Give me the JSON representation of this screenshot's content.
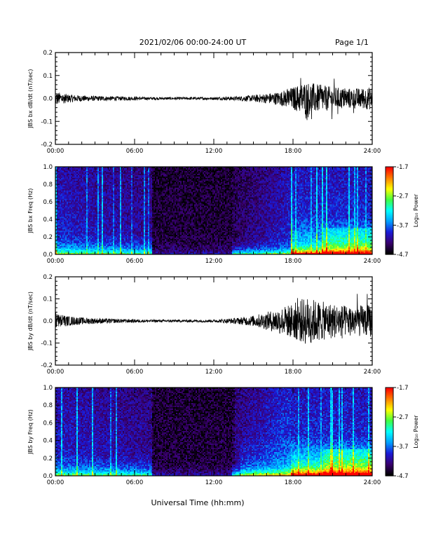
{
  "header": {
    "date_range": "2021/02/06  00:00-24:00 UT",
    "page": "Page 1/1"
  },
  "xaxis": {
    "title": "Universal Time (hh:mm)",
    "ticks": [
      "00:00",
      "06:00",
      "12:00",
      "18:00",
      "24:00"
    ],
    "range_hours": [
      0,
      24
    ]
  },
  "colorbar": {
    "label": "Log₁₀ Power",
    "ticks": [
      "-1.7",
      "-2.7",
      "-3.7",
      "-4.7"
    ],
    "range": [
      -4.7,
      -1.7
    ],
    "colormap": [
      "#000000",
      "#3a0070",
      "#1a1ad8",
      "#00a0ff",
      "#00ffff",
      "#40ff40",
      "#ffff00",
      "#ff8000",
      "#ff0000"
    ]
  },
  "chart_data": [
    {
      "type": "line",
      "ylabel": "JBS bx dB/dt (nT/sec)",
      "ylim": [
        -0.2,
        0.2
      ],
      "yticks": [
        "0.2",
        "0.1",
        "0.0",
        "-0.1",
        "-0.2"
      ],
      "xlim": [
        0,
        24
      ],
      "envelope_hours": [
        0,
        1,
        2,
        3,
        4,
        5,
        6,
        7,
        8,
        9,
        10,
        11,
        12,
        13,
        14,
        15,
        16,
        17,
        18,
        19,
        20,
        21,
        22,
        23,
        24
      ],
      "envelope_amplitude": [
        0.03,
        0.018,
        0.013,
        0.011,
        0.01,
        0.009,
        0.008,
        0.006,
        0.006,
        0.006,
        0.006,
        0.006,
        0.006,
        0.008,
        0.01,
        0.015,
        0.022,
        0.03,
        0.05,
        0.075,
        0.06,
        0.05,
        0.045,
        0.045,
        0.05
      ]
    },
    {
      "type": "heatmap",
      "ylabel": "JBS bx Freq (Hz)",
      "ylim": [
        0,
        1.0
      ],
      "yticks": [
        "1.0",
        "0.8",
        "0.6",
        "0.4",
        "0.2",
        "0.0"
      ],
      "xlim": [
        0,
        24
      ],
      "zlim": [
        -4.7,
        -1.7
      ]
    },
    {
      "type": "line",
      "ylabel": "JBS by dB/dt (nT/sec)",
      "ylim": [
        -0.2,
        0.2
      ],
      "yticks": [
        "0.2",
        "0.1",
        "0.0",
        "-0.1",
        "-0.2"
      ],
      "xlim": [
        0,
        24
      ],
      "envelope_hours": [
        0,
        1,
        2,
        3,
        4,
        5,
        6,
        7,
        8,
        9,
        10,
        11,
        12,
        13,
        14,
        15,
        16,
        17,
        18,
        19,
        20,
        21,
        22,
        23,
        24
      ],
      "envelope_amplitude": [
        0.035,
        0.022,
        0.016,
        0.013,
        0.011,
        0.009,
        0.008,
        0.006,
        0.006,
        0.006,
        0.006,
        0.006,
        0.006,
        0.01,
        0.016,
        0.025,
        0.04,
        0.06,
        0.08,
        0.11,
        0.09,
        0.08,
        0.07,
        0.07,
        0.075
      ]
    },
    {
      "type": "heatmap",
      "ylabel": "JBS by Freq (Hz)",
      "ylim": [
        0,
        1.0
      ],
      "yticks": [
        "1.0",
        "0.8",
        "0.6",
        "0.4",
        "0.2",
        "0.0"
      ],
      "xlim": [
        0,
        24
      ],
      "zlim": [
        -4.7,
        -1.7
      ]
    }
  ]
}
